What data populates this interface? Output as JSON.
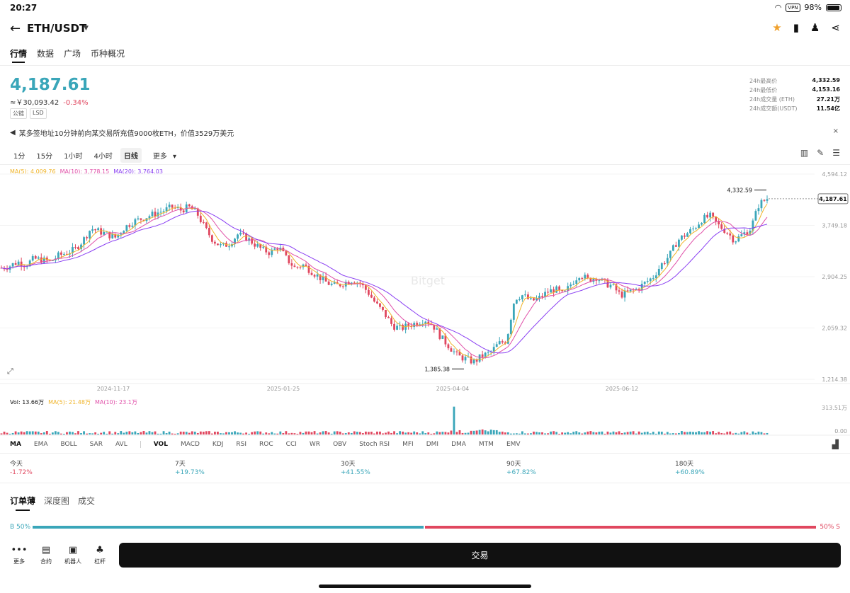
{
  "status": {
    "time": "20:27",
    "vpn": "VPN",
    "battery": "98%"
  },
  "header": {
    "title": "ETH/USDT"
  },
  "tabs": [
    "行情",
    "数据",
    "广场",
    "币种概况"
  ],
  "price": {
    "last": "4,187.61",
    "cny": "≈￥30,093.42",
    "change": "-0.34%",
    "tags": [
      "公链",
      "LSD"
    ]
  },
  "stats": [
    {
      "label": "24h最高价",
      "value": "4,332.59"
    },
    {
      "label": "24h最低价",
      "value": "4,153.16"
    },
    {
      "label": "24h成交量 (ETH)",
      "value": "27.21万"
    },
    {
      "label": "24h成交额(USDT)",
      "value": "11.54亿"
    }
  ],
  "notice": {
    "text": "某多签地址10分钟前向某交易所充值9000枚ETH，价值3529万美元",
    "close": "×"
  },
  "intervals": [
    "1分",
    "15分",
    "1小时",
    "4小时",
    "日线",
    "更多"
  ],
  "ma_legend": {
    "ma5": "MA(5): 4,009.76",
    "ma10": "MA(10): 3,778.15",
    "ma20": "MA(20): 3,764.03"
  },
  "chart_data": {
    "type": "candlestick",
    "x_labels": [
      "2024-11-17",
      "2025-01-25",
      "2025-04-04",
      "2025-06-12"
    ],
    "y_ticks": [
      "4,594.12",
      "3,749.18",
      "2,904.25",
      "2,059.32",
      "1,214.38"
    ],
    "ylim": [
      1214.38,
      4594.12
    ],
    "high_label": "4,332.59",
    "low_label": "1,385.38",
    "current_price": "4,187.61",
    "watermark": "Bitget",
    "close_series": [
      3050,
      3080,
      3150,
      3100,
      3200,
      3180,
      3150,
      3250,
      3300,
      3350,
      3500,
      3700,
      3650,
      3600,
      3550,
      3700,
      3800,
      3850,
      3900,
      3950,
      4000,
      4050,
      4000,
      4050,
      3950,
      3700,
      3500,
      3400,
      3450,
      3600,
      3550,
      3450,
      3350,
      3300,
      3400,
      3200,
      3050,
      3100,
      3000,
      2900,
      2800,
      2750,
      2800,
      2850,
      2800,
      2650,
      2450,
      2300,
      2100,
      2050,
      2100,
      2150,
      2200,
      2100,
      1900,
      1750,
      1600,
      1550,
      1500,
      1600,
      1650,
      1800,
      1850,
      2550,
      2600,
      2500,
      2550,
      2650,
      2700,
      2600,
      2800,
      2950,
      2850,
      2900,
      2800,
      2750,
      2600,
      2650,
      2700,
      2800,
      2900,
      3100,
      3250,
      3500,
      3600,
      3700,
      3850,
      3900,
      3750,
      3650,
      3500,
      3600,
      3700,
      4100,
      4190
    ],
    "volume": {
      "label": "Vol: 13.66万",
      "ma5": "MA(5): 21.48万",
      "ma10": "MA(10): 23.1万",
      "ymax": "313.51万",
      "ymin": "0.00"
    }
  },
  "indicators_main": [
    "MA",
    "EMA",
    "BOLL",
    "SAR",
    "AVL"
  ],
  "indicators_sub": [
    "VOL",
    "MACD",
    "KDJ",
    "RSI",
    "ROC",
    "CCI",
    "WR",
    "OBV",
    "Stoch RSI",
    "MFI",
    "DMI",
    "DMA",
    "MTM",
    "EMV"
  ],
  "performance": [
    {
      "label": "今天",
      "value": "-1.72%"
    },
    {
      "label": "7天",
      "value": "+19.73%"
    },
    {
      "label": "30天",
      "value": "+41.55%"
    },
    {
      "label": "90天",
      "value": "+67.82%"
    },
    {
      "label": "180天",
      "value": "+60.89%"
    }
  ],
  "orderbook_tabs": [
    "订单薄",
    "深度图",
    "成交"
  ],
  "ratio": {
    "buy": "B 50%",
    "sell": "50% S"
  },
  "bottom_nav": [
    "更多",
    "合约",
    "机器人",
    "杠杆"
  ],
  "trade_button": "交易"
}
